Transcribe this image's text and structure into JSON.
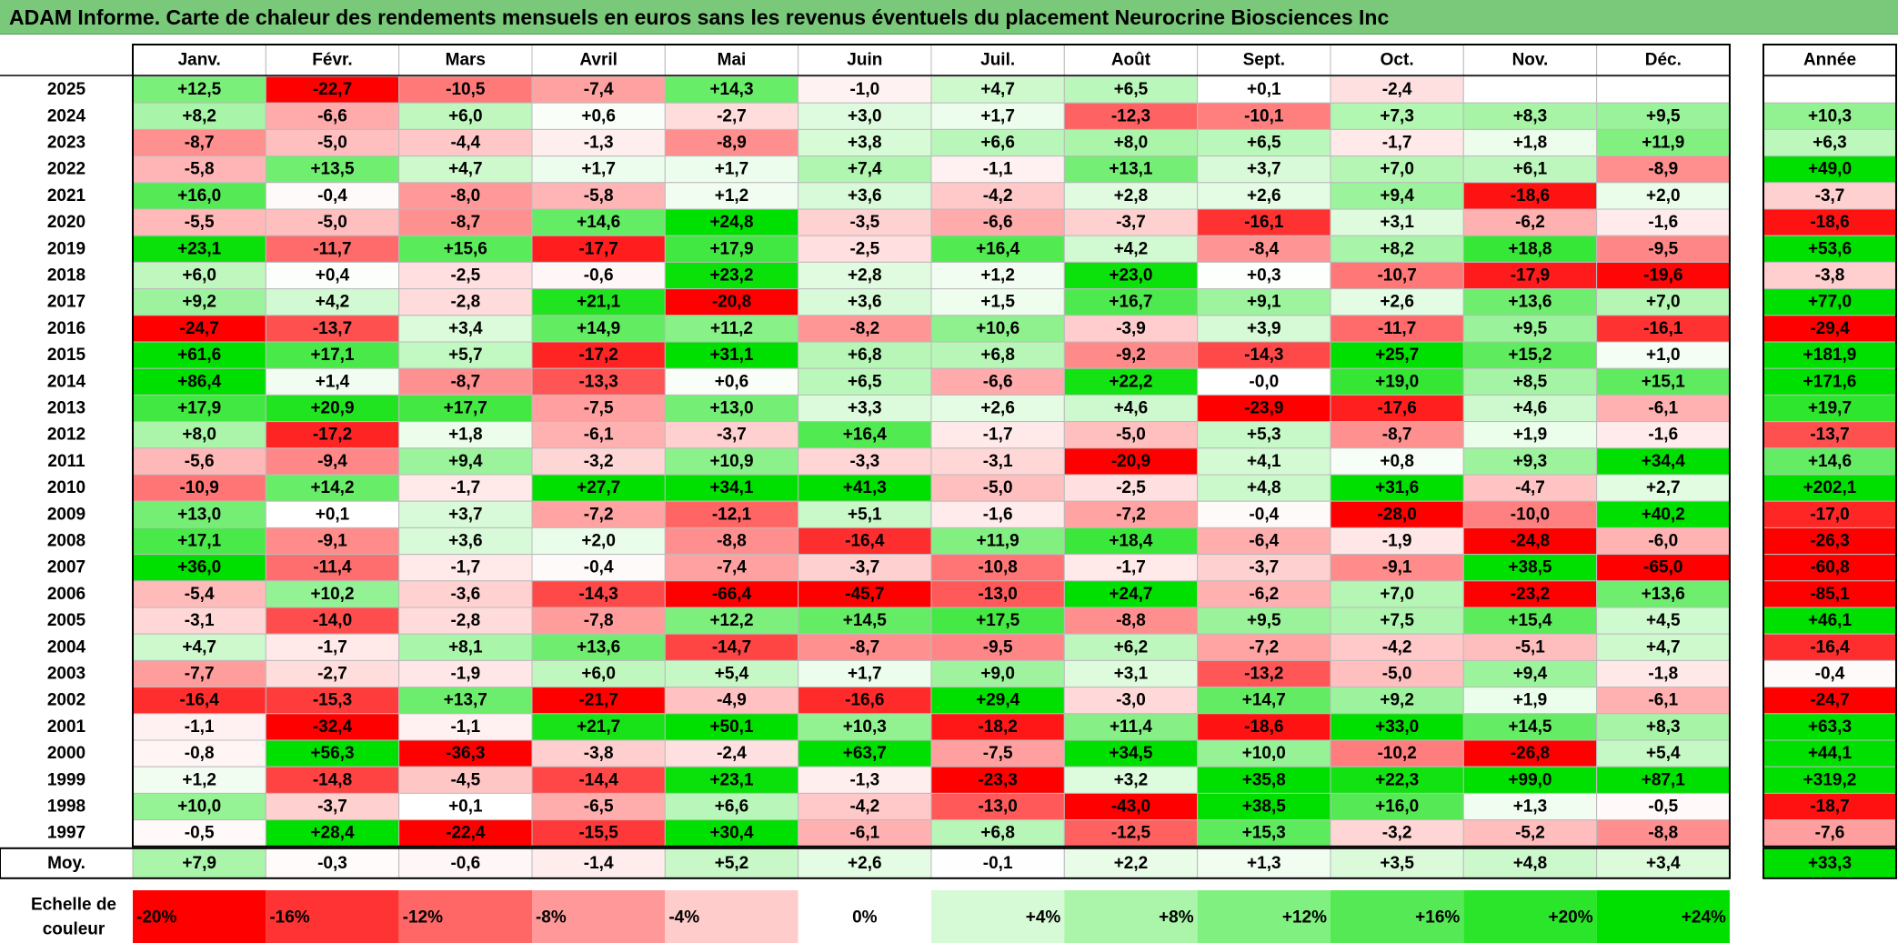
{
  "title": "ADAM Informe. Carte de chaleur des rendements mensuels en euros sans les revenus éventuels du placement Neurocrine Biosciences Inc",
  "chart_data": {
    "type": "heatmap",
    "title": "ADAM Informe. Carte de chaleur des rendements mensuels en euros sans les revenus éventuels du placement Neurocrine Biosciences Inc",
    "months": [
      "Janv.",
      "Févr.",
      "Mars",
      "Avril",
      "Mai",
      "Juin",
      "Juil.",
      "Août",
      "Sept.",
      "Oct.",
      "Nov.",
      "Déc."
    ],
    "annual_header": "Année",
    "rows": [
      {
        "year": "2025",
        "values": [
          "+12,5",
          "-22,7",
          "-10,5",
          "-7,4",
          "+14,3",
          "-1,0",
          "+4,7",
          "+6,5",
          "+0,1",
          "-2,4",
          "",
          ""
        ],
        "annual": ""
      },
      {
        "year": "2024",
        "values": [
          "+8,2",
          "-6,6",
          "+6,0",
          "+0,6",
          "-2,7",
          "+3,0",
          "+1,7",
          "-12,3",
          "-10,1",
          "+7,3",
          "+8,3",
          "+9,5"
        ],
        "annual": "+10,3"
      },
      {
        "year": "2023",
        "values": [
          "-8,7",
          "-5,0",
          "-4,4",
          "-1,3",
          "-8,9",
          "+3,8",
          "+6,6",
          "+8,0",
          "+6,5",
          "-1,7",
          "+1,8",
          "+11,9"
        ],
        "annual": "+6,3"
      },
      {
        "year": "2022",
        "values": [
          "-5,8",
          "+13,5",
          "+4,7",
          "+1,7",
          "+1,7",
          "+7,4",
          "-1,1",
          "+13,1",
          "+3,7",
          "+7,0",
          "+6,1",
          "-8,9"
        ],
        "annual": "+49,0"
      },
      {
        "year": "2021",
        "values": [
          "+16,0",
          "-0,4",
          "-8,0",
          "-5,8",
          "+1,2",
          "+3,6",
          "-4,2",
          "+2,8",
          "+2,6",
          "+9,4",
          "-18,6",
          "+2,0"
        ],
        "annual": "-3,7"
      },
      {
        "year": "2020",
        "values": [
          "-5,5",
          "-5,0",
          "-8,7",
          "+14,6",
          "+24,8",
          "-3,5",
          "-6,6",
          "-3,7",
          "-16,1",
          "+3,1",
          "-6,2",
          "-1,6"
        ],
        "annual": "-18,6"
      },
      {
        "year": "2019",
        "values": [
          "+23,1",
          "-11,7",
          "+15,6",
          "-17,7",
          "+17,9",
          "-2,5",
          "+16,4",
          "+4,2",
          "-8,4",
          "+8,2",
          "+18,8",
          "-9,5"
        ],
        "annual": "+53,6"
      },
      {
        "year": "2018",
        "values": [
          "+6,0",
          "+0,4",
          "-2,5",
          "-0,6",
          "+23,2",
          "+2,8",
          "+1,2",
          "+23,0",
          "+0,3",
          "-10,7",
          "-17,9",
          "-19,6"
        ],
        "annual": "-3,8"
      },
      {
        "year": "2017",
        "values": [
          "+9,2",
          "+4,2",
          "-2,8",
          "+21,1",
          "-20,8",
          "+3,6",
          "+1,5",
          "+16,7",
          "+9,1",
          "+2,6",
          "+13,6",
          "+7,0"
        ],
        "annual": "+77,0"
      },
      {
        "year": "2016",
        "values": [
          "-24,7",
          "-13,7",
          "+3,4",
          "+14,9",
          "+11,2",
          "-8,2",
          "+10,6",
          "-3,9",
          "+3,9",
          "-11,7",
          "+9,5",
          "-16,1"
        ],
        "annual": "-29,4"
      },
      {
        "year": "2015",
        "values": [
          "+61,6",
          "+17,1",
          "+5,7",
          "-17,2",
          "+31,1",
          "+6,8",
          "+6,8",
          "-9,2",
          "-14,3",
          "+25,7",
          "+15,2",
          "+1,0"
        ],
        "annual": "+181,9"
      },
      {
        "year": "2014",
        "values": [
          "+86,4",
          "+1,4",
          "-8,7",
          "-13,3",
          "+0,6",
          "+6,5",
          "-6,6",
          "+22,2",
          "-0,0",
          "+19,0",
          "+8,5",
          "+15,1"
        ],
        "annual": "+171,6"
      },
      {
        "year": "2013",
        "values": [
          "+17,9",
          "+20,9",
          "+17,7",
          "-7,5",
          "+13,0",
          "+3,3",
          "+2,6",
          "+4,6",
          "-23,9",
          "-17,6",
          "+4,6",
          "-6,1"
        ],
        "annual": "+19,7"
      },
      {
        "year": "2012",
        "values": [
          "+8,0",
          "-17,2",
          "+1,8",
          "-6,1",
          "-3,7",
          "+16,4",
          "-1,7",
          "-5,0",
          "+5,3",
          "-8,7",
          "+1,9",
          "-1,6"
        ],
        "annual": "-13,7"
      },
      {
        "year": "2011",
        "values": [
          "-5,6",
          "-9,4",
          "+9,4",
          "-3,2",
          "+10,9",
          "-3,3",
          "-3,1",
          "-20,9",
          "+4,1",
          "+0,8",
          "+9,3",
          "+34,4"
        ],
        "annual": "+14,6"
      },
      {
        "year": "2010",
        "values": [
          "-10,9",
          "+14,2",
          "-1,7",
          "+27,7",
          "+34,1",
          "+41,3",
          "-5,0",
          "-2,5",
          "+4,8",
          "+31,6",
          "-4,7",
          "+2,7"
        ],
        "annual": "+202,1"
      },
      {
        "year": "2009",
        "values": [
          "+13,0",
          "+0,1",
          "+3,7",
          "-7,2",
          "-12,1",
          "+5,1",
          "-1,6",
          "-7,2",
          "-0,4",
          "-28,0",
          "-10,0",
          "+40,2"
        ],
        "annual": "-17,0"
      },
      {
        "year": "2008",
        "values": [
          "+17,1",
          "-9,1",
          "+3,6",
          "+2,0",
          "-8,8",
          "-16,4",
          "+11,9",
          "+18,4",
          "-6,4",
          "-1,9",
          "-24,8",
          "-6,0"
        ],
        "annual": "-26,3"
      },
      {
        "year": "2007",
        "values": [
          "+36,0",
          "-11,4",
          "-1,7",
          "-0,4",
          "-7,4",
          "-3,7",
          "-10,8",
          "-1,7",
          "-3,7",
          "-9,1",
          "+38,5",
          "-65,0"
        ],
        "annual": "-60,8"
      },
      {
        "year": "2006",
        "values": [
          "-5,4",
          "+10,2",
          "-3,6",
          "-14,3",
          "-66,4",
          "-45,7",
          "-13,0",
          "+24,7",
          "-6,2",
          "+7,0",
          "-23,2",
          "+13,6"
        ],
        "annual": "-85,1"
      },
      {
        "year": "2005",
        "values": [
          "-3,1",
          "-14,0",
          "-2,8",
          "-7,8",
          "+12,2",
          "+14,5",
          "+17,5",
          "-8,8",
          "+9,5",
          "+7,5",
          "+15,4",
          "+4,5"
        ],
        "annual": "+46,1"
      },
      {
        "year": "2004",
        "values": [
          "+4,7",
          "-1,7",
          "+8,1",
          "+13,6",
          "-14,7",
          "-8,7",
          "-9,5",
          "+6,2",
          "-7,2",
          "-4,2",
          "-5,1",
          "+4,7"
        ],
        "annual": "-16,4"
      },
      {
        "year": "2003",
        "values": [
          "-7,7",
          "-2,7",
          "-1,9",
          "+6,0",
          "+5,4",
          "+1,7",
          "+9,0",
          "+3,1",
          "-13,2",
          "-5,0",
          "+9,4",
          "-1,8"
        ],
        "annual": "-0,4"
      },
      {
        "year": "2002",
        "values": [
          "-16,4",
          "-15,3",
          "+13,7",
          "-21,7",
          "-4,9",
          "-16,6",
          "+29,4",
          "-3,0",
          "+14,7",
          "+9,2",
          "+1,9",
          "-6,1"
        ],
        "annual": "-24,7"
      },
      {
        "year": "2001",
        "values": [
          "-1,1",
          "-32,4",
          "-1,1",
          "+21,7",
          "+50,1",
          "+10,3",
          "-18,2",
          "+11,4",
          "-18,6",
          "+33,0",
          "+14,5",
          "+8,3"
        ],
        "annual": "+63,3"
      },
      {
        "year": "2000",
        "values": [
          "-0,8",
          "+56,3",
          "-36,3",
          "-3,8",
          "-2,4",
          "+63,7",
          "-7,5",
          "+34,5",
          "+10,0",
          "-10,2",
          "-26,8",
          "+5,4"
        ],
        "annual": "+44,1"
      },
      {
        "year": "1999",
        "values": [
          "+1,2",
          "-14,8",
          "-4,5",
          "-14,4",
          "+23,1",
          "-1,3",
          "-23,3",
          "+3,2",
          "+35,8",
          "+22,3",
          "+99,0",
          "+87,1"
        ],
        "annual": "+319,2"
      },
      {
        "year": "1998",
        "values": [
          "+10,0",
          "-3,7",
          "+0,1",
          "-6,5",
          "+6,6",
          "-4,2",
          "-13,0",
          "-43,0",
          "+38,5",
          "+16,0",
          "+1,3",
          "-0,5"
        ],
        "annual": "-18,7"
      },
      {
        "year": "1997",
        "values": [
          "-0,5",
          "+28,4",
          "-22,4",
          "-15,5",
          "+30,4",
          "-6,1",
          "+6,8",
          "-12,5",
          "+15,3",
          "-3,2",
          "-5,2",
          "-8,8"
        ],
        "annual": "-7,6"
      }
    ],
    "average": {
      "label": "Moy.",
      "values": [
        "+7,9",
        "-0,3",
        "-0,6",
        "-1,4",
        "+5,2",
        "+2,6",
        "-0,1",
        "+2,2",
        "+1,3",
        "+3,5",
        "+4,8",
        "+3,4"
      ],
      "annual": "+33,3"
    },
    "scale": {
      "label_line1": "Echelle de",
      "label_line2": "couleur",
      "items": [
        "-20%",
        "-16%",
        "-12%",
        "-8%",
        "-4%",
        "0%",
        "+4%",
        "+8%",
        "+12%",
        "+16%",
        "+20%",
        "+24%"
      ],
      "values": [
        -20,
        -16,
        -12,
        -8,
        -4,
        0,
        4,
        8,
        12,
        16,
        20,
        24
      ]
    },
    "colors": {
      "negative": "#ff0000",
      "neutral": "#ffffff",
      "positive": "#00e000",
      "title_bg": "#7ac97a",
      "grid": "#bbbbbb",
      "border": "#000000"
    }
  }
}
